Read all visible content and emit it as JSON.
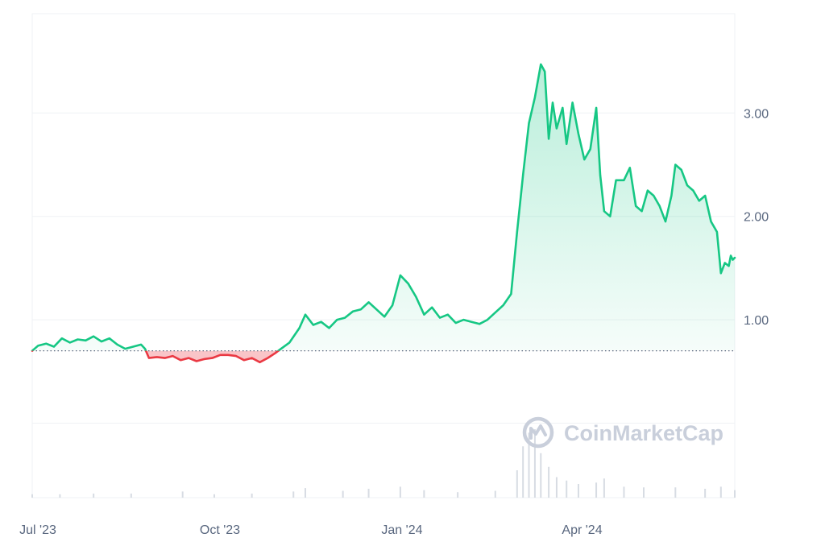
{
  "watermark": {
    "text": "CoinMarketCap"
  },
  "colors": {
    "up_line": "#16c784",
    "down_line": "#ea3943",
    "grid": "#eff2f5",
    "axis_text": "#58667e",
    "baseline": "#58667e",
    "volume": "#d7dce3"
  },
  "chart_data": {
    "type": "area",
    "title": "",
    "xlabel": "",
    "ylabel": "",
    "x_ticks": [
      {
        "label": "Jul '23",
        "date": "2023-07-01"
      },
      {
        "label": "Oct '23",
        "date": "2023-10-01"
      },
      {
        "label": "Jan '24",
        "date": "2024-01-01"
      },
      {
        "label": "Apr '24",
        "date": "2024-04-01"
      }
    ],
    "y_ticks": [
      {
        "label": "1.00",
        "value": 1.0
      },
      {
        "label": "2.00",
        "value": 2.0
      },
      {
        "label": "3.00",
        "value": 3.0
      }
    ],
    "y_axis_position": "right",
    "ylim": [
      -0.72,
      3.96
    ],
    "xlim": [
      "2023-07-01",
      "2024-06-20"
    ],
    "baseline_value": 0.7,
    "grid": true,
    "series": [
      {
        "values": [
          [
            "2023-07-01",
            0.7
          ],
          [
            "2023-07-04",
            0.75
          ],
          [
            "2023-07-08",
            0.77
          ],
          [
            "2023-07-12",
            0.74
          ],
          [
            "2023-07-16",
            0.82
          ],
          [
            "2023-07-20",
            0.78
          ],
          [
            "2023-07-24",
            0.81
          ],
          [
            "2023-07-28",
            0.8
          ],
          [
            "2023-08-01",
            0.84
          ],
          [
            "2023-08-05",
            0.79
          ],
          [
            "2023-08-09",
            0.82
          ],
          [
            "2023-08-13",
            0.76
          ],
          [
            "2023-08-17",
            0.72
          ],
          [
            "2023-08-21",
            0.74
          ],
          [
            "2023-08-25",
            0.76
          ],
          [
            "2023-08-27",
            0.72
          ],
          [
            "2023-08-29",
            0.63
          ],
          [
            "2023-09-02",
            0.64
          ],
          [
            "2023-09-06",
            0.63
          ],
          [
            "2023-09-10",
            0.65
          ],
          [
            "2023-09-14",
            0.61
          ],
          [
            "2023-09-18",
            0.63
          ],
          [
            "2023-09-22",
            0.6
          ],
          [
            "2023-09-26",
            0.62
          ],
          [
            "2023-09-30",
            0.63
          ],
          [
            "2023-10-04",
            0.66
          ],
          [
            "2023-10-08",
            0.66
          ],
          [
            "2023-10-12",
            0.65
          ],
          [
            "2023-10-16",
            0.61
          ],
          [
            "2023-10-20",
            0.63
          ],
          [
            "2023-10-24",
            0.59
          ],
          [
            "2023-10-28",
            0.63
          ],
          [
            "2023-11-01",
            0.68
          ],
          [
            "2023-11-03",
            0.71
          ],
          [
            "2023-11-08",
            0.78
          ],
          [
            "2023-11-13",
            0.92
          ],
          [
            "2023-11-16",
            1.05
          ],
          [
            "2023-11-20",
            0.95
          ],
          [
            "2023-11-24",
            0.98
          ],
          [
            "2023-11-28",
            0.92
          ],
          [
            "2023-12-02",
            1.0
          ],
          [
            "2023-12-06",
            1.02
          ],
          [
            "2023-12-10",
            1.08
          ],
          [
            "2023-12-14",
            1.1
          ],
          [
            "2023-12-18",
            1.17
          ],
          [
            "2023-12-22",
            1.1
          ],
          [
            "2023-12-26",
            1.03
          ],
          [
            "2023-12-30",
            1.14
          ],
          [
            "2024-01-03",
            1.43
          ],
          [
            "2024-01-07",
            1.35
          ],
          [
            "2024-01-11",
            1.22
          ],
          [
            "2024-01-15",
            1.05
          ],
          [
            "2024-01-19",
            1.12
          ],
          [
            "2024-01-23",
            1.02
          ],
          [
            "2024-01-27",
            1.05
          ],
          [
            "2024-01-31",
            0.97
          ],
          [
            "2024-02-04",
            1.0
          ],
          [
            "2024-02-08",
            0.98
          ],
          [
            "2024-02-12",
            0.96
          ],
          [
            "2024-02-16",
            1.0
          ],
          [
            "2024-02-20",
            1.07
          ],
          [
            "2024-02-24",
            1.14
          ],
          [
            "2024-02-28",
            1.25
          ],
          [
            "2024-03-02",
            1.85
          ],
          [
            "2024-03-05",
            2.4
          ],
          [
            "2024-03-08",
            2.9
          ],
          [
            "2024-03-11",
            3.15
          ],
          [
            "2024-03-14",
            3.47
          ],
          [
            "2024-03-16",
            3.4
          ],
          [
            "2024-03-18",
            2.75
          ],
          [
            "2024-03-20",
            3.1
          ],
          [
            "2024-03-22",
            2.85
          ],
          [
            "2024-03-25",
            3.05
          ],
          [
            "2024-03-27",
            2.7
          ],
          [
            "2024-03-30",
            3.1
          ],
          [
            "2024-04-02",
            2.8
          ],
          [
            "2024-04-05",
            2.55
          ],
          [
            "2024-04-08",
            2.65
          ],
          [
            "2024-04-11",
            3.05
          ],
          [
            "2024-04-13",
            2.4
          ],
          [
            "2024-04-15",
            2.05
          ],
          [
            "2024-04-18",
            2.0
          ],
          [
            "2024-04-21",
            2.35
          ],
          [
            "2024-04-25",
            2.35
          ],
          [
            "2024-04-28",
            2.47
          ],
          [
            "2024-05-01",
            2.1
          ],
          [
            "2024-05-04",
            2.05
          ],
          [
            "2024-05-07",
            2.25
          ],
          [
            "2024-05-10",
            2.2
          ],
          [
            "2024-05-13",
            2.1
          ],
          [
            "2024-05-16",
            1.95
          ],
          [
            "2024-05-19",
            2.2
          ],
          [
            "2024-05-21",
            2.5
          ],
          [
            "2024-05-24",
            2.45
          ],
          [
            "2024-05-27",
            2.3
          ],
          [
            "2024-05-30",
            2.25
          ],
          [
            "2024-06-02",
            2.15
          ],
          [
            "2024-06-05",
            2.2
          ],
          [
            "2024-06-08",
            1.95
          ],
          [
            "2024-06-11",
            1.85
          ],
          [
            "2024-06-13",
            1.45
          ],
          [
            "2024-06-15",
            1.55
          ],
          [
            "2024-06-17",
            1.52
          ],
          [
            "2024-06-18",
            1.62
          ],
          [
            "2024-06-19",
            1.58
          ],
          [
            "2024-06-20",
            1.6
          ]
        ]
      }
    ],
    "volume": [
      [
        "2023-07-01",
        0.5
      ],
      [
        "2023-07-15",
        0.5
      ],
      [
        "2023-08-01",
        0.6
      ],
      [
        "2023-08-20",
        0.6
      ],
      [
        "2023-09-15",
        0.9
      ],
      [
        "2023-10-01",
        0.5
      ],
      [
        "2023-10-20",
        0.6
      ],
      [
        "2023-11-10",
        0.9
      ],
      [
        "2023-11-16",
        1.4
      ],
      [
        "2023-12-05",
        1.0
      ],
      [
        "2023-12-18",
        1.3
      ],
      [
        "2024-01-03",
        1.6
      ],
      [
        "2024-01-15",
        1.1
      ],
      [
        "2024-02-01",
        0.8
      ],
      [
        "2024-02-20",
        1.0
      ],
      [
        "2024-03-02",
        4.0
      ],
      [
        "2024-03-05",
        7.5
      ],
      [
        "2024-03-08",
        9.5
      ],
      [
        "2024-03-11",
        10.0
      ],
      [
        "2024-03-14",
        6.5
      ],
      [
        "2024-03-18",
        4.5
      ],
      [
        "2024-03-22",
        3.0
      ],
      [
        "2024-03-27",
        2.5
      ],
      [
        "2024-04-02",
        2.0
      ],
      [
        "2024-04-11",
        2.2
      ],
      [
        "2024-04-15",
        2.8
      ],
      [
        "2024-04-25",
        1.6
      ],
      [
        "2024-05-05",
        1.5
      ],
      [
        "2024-05-21",
        1.5
      ],
      [
        "2024-06-05",
        1.3
      ],
      [
        "2024-06-13",
        1.6
      ],
      [
        "2024-06-20",
        1.1
      ]
    ]
  }
}
